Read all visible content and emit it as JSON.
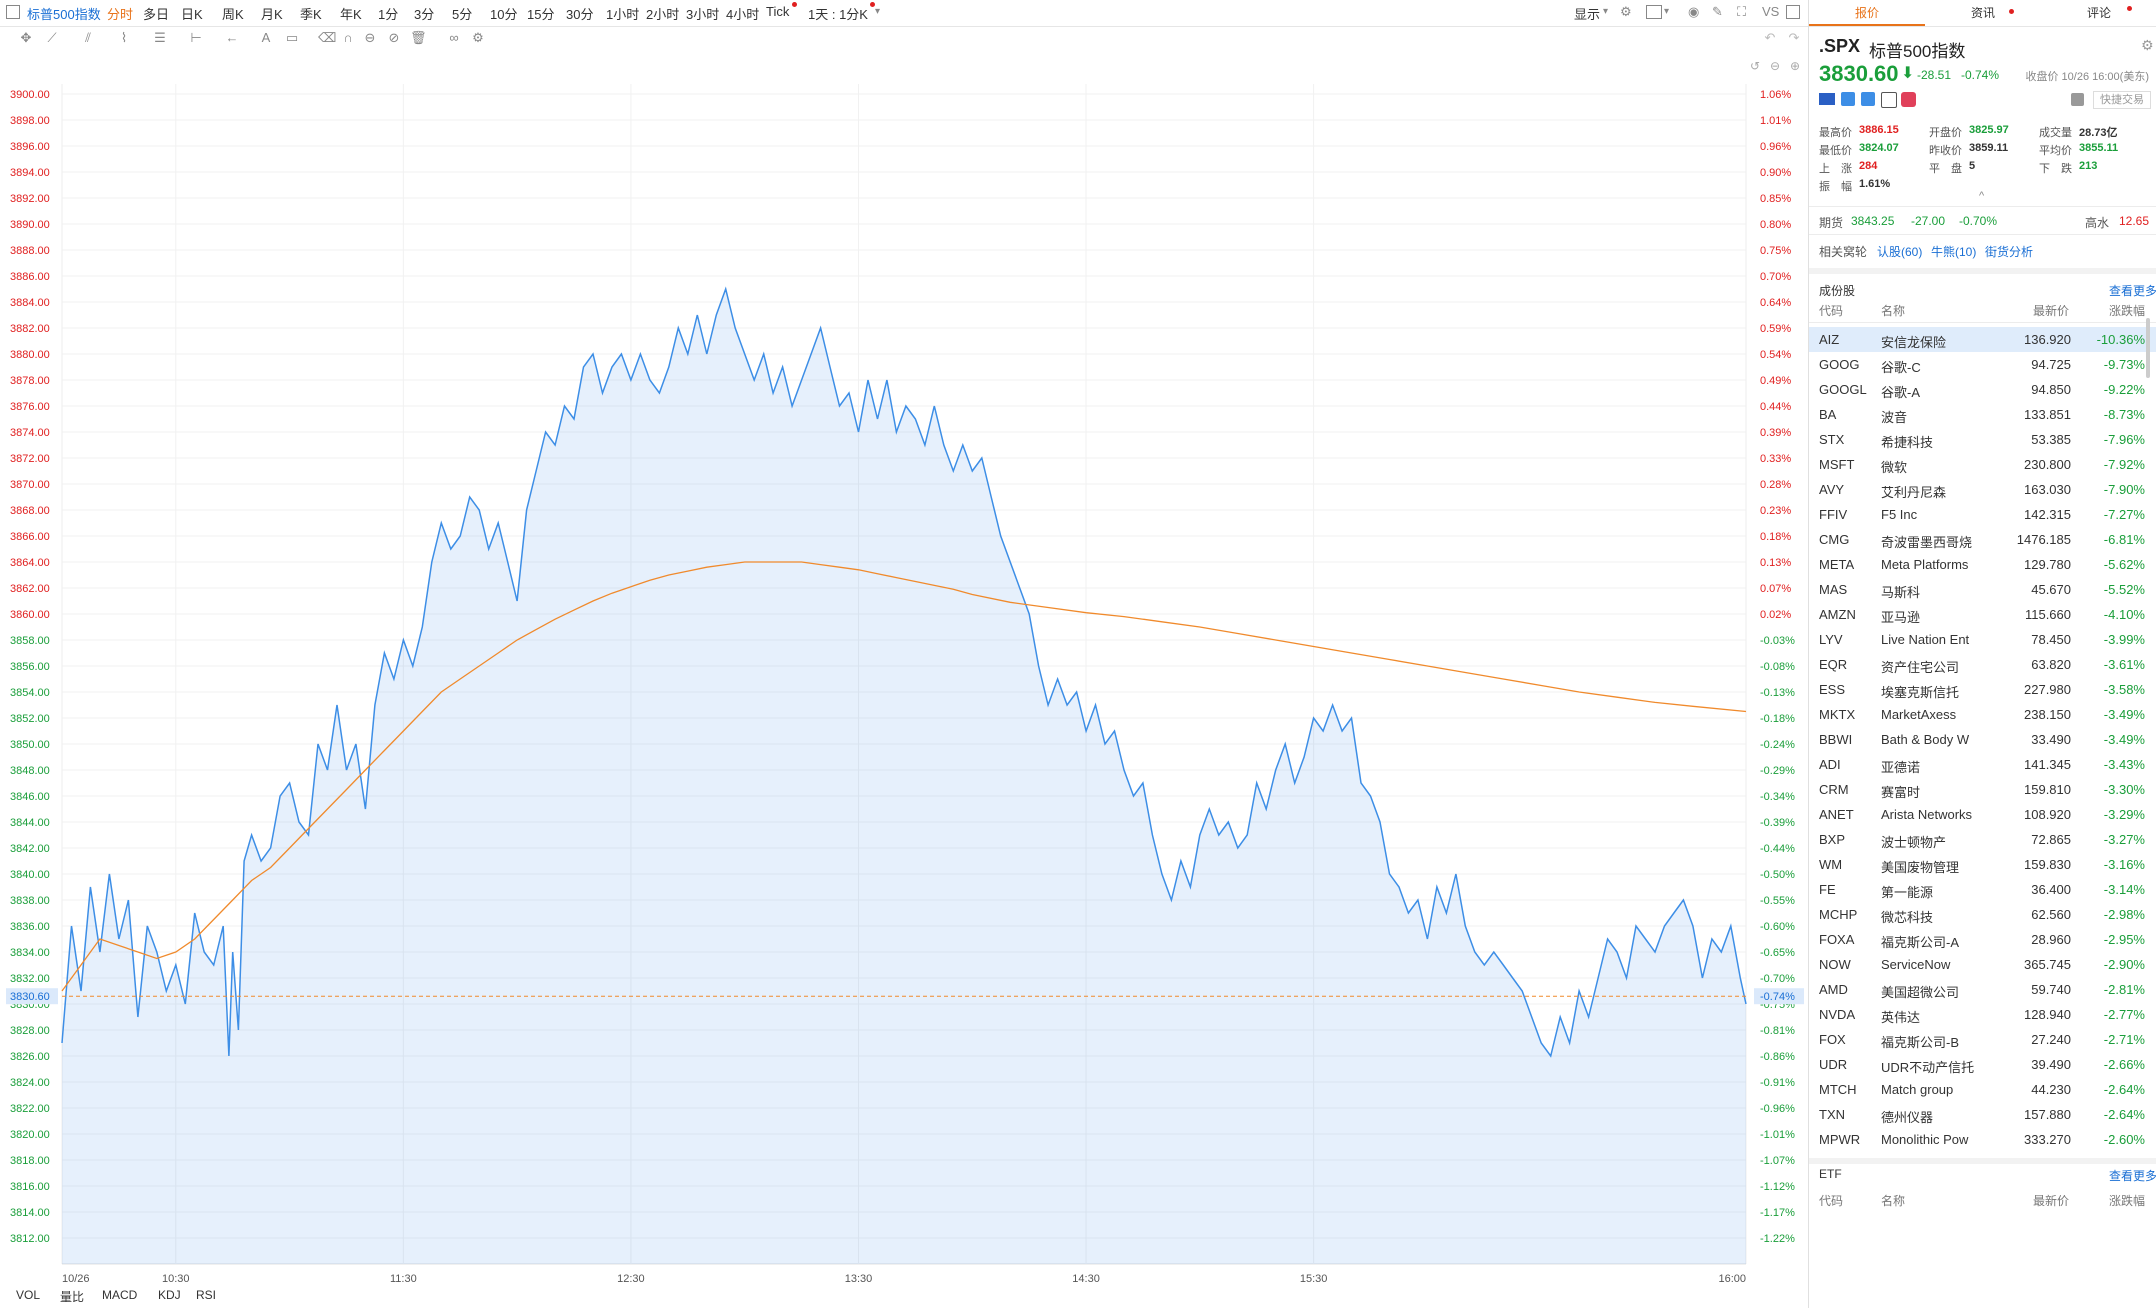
{
  "topbar": {
    "symbol_tab": "标普500指数",
    "timeframes": [
      "分时",
      "多日",
      "日K",
      "周K",
      "月K",
      "季K",
      "年K",
      "1分",
      "3分",
      "5分",
      "10分",
      "15分",
      "30分",
      "1小时",
      "2小时",
      "3小时",
      "4小时",
      "Tick"
    ],
    "active": "分时",
    "period_select": "1天 : 1分K",
    "display_label": "显示",
    "vs_label": "VS"
  },
  "chart_data": {
    "type": "area",
    "x_labels": [
      "10/26",
      "10:30",
      "11:30",
      "12:30",
      "13:30",
      "14:30",
      "15:30",
      "16:00"
    ],
    "y_left_ticks": [
      "3900.00",
      "3898.00",
      "3896.00",
      "3894.00",
      "3892.00",
      "3890.00",
      "3888.00",
      "3886.00",
      "3884.00",
      "3882.00",
      "3880.00",
      "3878.00",
      "3876.00",
      "3874.00",
      "3872.00",
      "3870.00",
      "3868.00",
      "3866.00",
      "3864.00",
      "3862.00",
      "3860.00",
      "3858.00",
      "3856.00",
      "3854.00",
      "3852.00",
      "3850.00",
      "3848.00",
      "3846.00",
      "3844.00",
      "3842.00",
      "3840.00",
      "3838.00",
      "3836.00",
      "3834.00",
      "3832.00",
      "3830.00",
      "3828.00",
      "3826.00",
      "3824.00",
      "3822.00",
      "3820.00",
      "3818.00",
      "3816.00",
      "3814.00",
      "3812.00"
    ],
    "y_right_ticks": [
      "1.06%",
      "1.01%",
      "0.96%",
      "0.90%",
      "0.85%",
      "0.80%",
      "0.75%",
      "0.70%",
      "0.64%",
      "0.59%",
      "0.54%",
      "0.49%",
      "0.44%",
      "0.39%",
      "0.33%",
      "0.28%",
      "0.23%",
      "0.18%",
      "0.13%",
      "0.07%",
      "0.02%",
      "-0.03%",
      "-0.08%",
      "-0.13%",
      "-0.18%",
      "-0.24%",
      "-0.29%",
      "-0.34%",
      "-0.39%",
      "-0.44%",
      "-0.50%",
      "-0.55%",
      "-0.60%",
      "-0.65%",
      "-0.70%",
      "-0.75%",
      "-0.81%",
      "-0.86%",
      "-0.91%",
      "-0.96%",
      "-1.01%",
      "-1.07%",
      "-1.12%",
      "-1.17%",
      "-1.22%"
    ],
    "ylim": [
      3811,
      3901
    ],
    "prev_close": 3859.11,
    "current_label_left": "3830.60",
    "current_label_right": "-0.74%",
    "price": [
      [
        0,
        3827
      ],
      [
        5,
        3836
      ],
      [
        10,
        3831
      ],
      [
        15,
        3839
      ],
      [
        20,
        3834
      ],
      [
        25,
        3840
      ],
      [
        30,
        3835
      ],
      [
        35,
        3838
      ],
      [
        40,
        3829
      ],
      [
        45,
        3836
      ],
      [
        50,
        3834
      ],
      [
        55,
        3831
      ],
      [
        60,
        3833
      ],
      [
        65,
        3830
      ],
      [
        70,
        3837
      ],
      [
        75,
        3834
      ],
      [
        80,
        3833
      ],
      [
        85,
        3836
      ],
      [
        88,
        3826
      ],
      [
        90,
        3834
      ],
      [
        93,
        3828
      ],
      [
        96,
        3841
      ],
      [
        100,
        3843
      ],
      [
        105,
        3841
      ],
      [
        110,
        3842
      ],
      [
        115,
        3846
      ],
      [
        120,
        3847
      ],
      [
        125,
        3844
      ],
      [
        130,
        3843
      ],
      [
        135,
        3850
      ],
      [
        140,
        3848
      ],
      [
        145,
        3853
      ],
      [
        150,
        3848
      ],
      [
        155,
        3850
      ],
      [
        160,
        3845
      ],
      [
        165,
        3853
      ],
      [
        170,
        3857
      ],
      [
        175,
        3855
      ],
      [
        180,
        3858
      ],
      [
        185,
        3856
      ],
      [
        190,
        3859
      ],
      [
        195,
        3864
      ],
      [
        200,
        3867
      ],
      [
        205,
        3865
      ],
      [
        210,
        3866
      ],
      [
        215,
        3869
      ],
      [
        220,
        3868
      ],
      [
        225,
        3865
      ],
      [
        230,
        3867
      ],
      [
        235,
        3864
      ],
      [
        240,
        3861
      ],
      [
        245,
        3868
      ],
      [
        250,
        3871
      ],
      [
        255,
        3874
      ],
      [
        260,
        3873
      ],
      [
        265,
        3876
      ],
      [
        270,
        3875
      ],
      [
        275,
        3879
      ],
      [
        280,
        3880
      ],
      [
        285,
        3877
      ],
      [
        290,
        3879
      ],
      [
        295,
        3880
      ],
      [
        300,
        3878
      ],
      [
        305,
        3880
      ],
      [
        310,
        3878
      ],
      [
        315,
        3877
      ],
      [
        320,
        3879
      ],
      [
        325,
        3882
      ],
      [
        330,
        3880
      ],
      [
        335,
        3883
      ],
      [
        340,
        3880
      ],
      [
        345,
        3883
      ],
      [
        350,
        3885
      ],
      [
        355,
        3882
      ],
      [
        360,
        3880
      ],
      [
        365,
        3878
      ],
      [
        370,
        3880
      ],
      [
        375,
        3877
      ],
      [
        380,
        3879
      ],
      [
        385,
        3876
      ],
      [
        390,
        3878
      ],
      [
        395,
        3880
      ],
      [
        400,
        3882
      ],
      [
        405,
        3879
      ],
      [
        410,
        3876
      ],
      [
        415,
        3877
      ],
      [
        420,
        3874
      ],
      [
        425,
        3878
      ],
      [
        430,
        3875
      ],
      [
        435,
        3878
      ],
      [
        440,
        3874
      ],
      [
        445,
        3876
      ],
      [
        450,
        3875
      ],
      [
        455,
        3873
      ],
      [
        460,
        3876
      ],
      [
        465,
        3873
      ],
      [
        470,
        3871
      ],
      [
        475,
        3873
      ],
      [
        480,
        3871
      ],
      [
        485,
        3872
      ],
      [
        490,
        3869
      ],
      [
        495,
        3866
      ],
      [
        500,
        3864
      ],
      [
        505,
        3862
      ],
      [
        510,
        3860
      ],
      [
        515,
        3856
      ],
      [
        520,
        3853
      ],
      [
        525,
        3855
      ],
      [
        530,
        3853
      ],
      [
        535,
        3854
      ],
      [
        540,
        3851
      ],
      [
        545,
        3853
      ],
      [
        550,
        3850
      ],
      [
        555,
        3851
      ],
      [
        560,
        3848
      ],
      [
        565,
        3846
      ],
      [
        570,
        3847
      ],
      [
        575,
        3843
      ],
      [
        580,
        3840
      ],
      [
        585,
        3838
      ],
      [
        590,
        3841
      ],
      [
        595,
        3839
      ],
      [
        600,
        3843
      ],
      [
        605,
        3845
      ],
      [
        610,
        3843
      ],
      [
        615,
        3844
      ],
      [
        620,
        3842
      ],
      [
        625,
        3843
      ],
      [
        630,
        3847
      ],
      [
        635,
        3845
      ],
      [
        640,
        3848
      ],
      [
        645,
        3850
      ],
      [
        650,
        3847
      ],
      [
        655,
        3849
      ],
      [
        660,
        3852
      ],
      [
        665,
        3851
      ],
      [
        670,
        3853
      ],
      [
        675,
        3851
      ],
      [
        680,
        3852
      ],
      [
        685,
        3847
      ],
      [
        690,
        3846
      ],
      [
        695,
        3844
      ],
      [
        700,
        3840
      ],
      [
        705,
        3839
      ],
      [
        710,
        3837
      ],
      [
        715,
        3838
      ],
      [
        720,
        3835
      ],
      [
        725,
        3839
      ],
      [
        730,
        3837
      ],
      [
        735,
        3840
      ],
      [
        740,
        3836
      ],
      [
        745,
        3834
      ],
      [
        750,
        3833
      ],
      [
        755,
        3834
      ],
      [
        760,
        3833
      ],
      [
        765,
        3832
      ],
      [
        770,
        3831
      ],
      [
        775,
        3829
      ],
      [
        780,
        3827
      ],
      [
        785,
        3826
      ],
      [
        790,
        3829
      ],
      [
        795,
        3827
      ],
      [
        800,
        3831
      ],
      [
        805,
        3829
      ],
      [
        810,
        3832
      ],
      [
        815,
        3835
      ],
      [
        820,
        3834
      ],
      [
        825,
        3832
      ],
      [
        830,
        3836
      ],
      [
        835,
        3835
      ],
      [
        840,
        3834
      ],
      [
        845,
        3836
      ],
      [
        850,
        3837
      ],
      [
        855,
        3838
      ],
      [
        860,
        3836
      ],
      [
        865,
        3832
      ],
      [
        870,
        3835
      ],
      [
        875,
        3834
      ],
      [
        880,
        3836
      ],
      [
        885,
        3832
      ],
      [
        888,
        3830
      ]
    ],
    "average": [
      [
        0,
        3831
      ],
      [
        10,
        3833
      ],
      [
        20,
        3835
      ],
      [
        30,
        3834.5
      ],
      [
        40,
        3834
      ],
      [
        50,
        3833.5
      ],
      [
        60,
        3834
      ],
      [
        70,
        3835
      ],
      [
        80,
        3836.5
      ],
      [
        90,
        3838
      ],
      [
        100,
        3839.5
      ],
      [
        110,
        3840.5
      ],
      [
        120,
        3842
      ],
      [
        130,
        3843.5
      ],
      [
        140,
        3845
      ],
      [
        150,
        3846.5
      ],
      [
        160,
        3848
      ],
      [
        170,
        3849.5
      ],
      [
        180,
        3851
      ],
      [
        190,
        3852.5
      ],
      [
        200,
        3854
      ],
      [
        210,
        3855
      ],
      [
        220,
        3856
      ],
      [
        230,
        3857
      ],
      [
        240,
        3858
      ],
      [
        250,
        3858.8
      ],
      [
        260,
        3859.6
      ],
      [
        270,
        3860.3
      ],
      [
        280,
        3861
      ],
      [
        290,
        3861.6
      ],
      [
        300,
        3862.1
      ],
      [
        310,
        3862.6
      ],
      [
        320,
        3863
      ],
      [
        330,
        3863.3
      ],
      [
        340,
        3863.6
      ],
      [
        350,
        3863.8
      ],
      [
        360,
        3864
      ],
      [
        370,
        3864
      ],
      [
        380,
        3864
      ],
      [
        390,
        3864
      ],
      [
        400,
        3863.8
      ],
      [
        410,
        3863.6
      ],
      [
        420,
        3863.4
      ],
      [
        430,
        3863.1
      ],
      [
        440,
        3862.8
      ],
      [
        450,
        3862.5
      ],
      [
        460,
        3862.2
      ],
      [
        470,
        3861.9
      ],
      [
        480,
        3861.5
      ],
      [
        500,
        3860.9
      ],
      [
        520,
        3860.5
      ],
      [
        540,
        3860.1
      ],
      [
        560,
        3859.8
      ],
      [
        580,
        3859.4
      ],
      [
        600,
        3859
      ],
      [
        620,
        3858.5
      ],
      [
        640,
        3858
      ],
      [
        660,
        3857.5
      ],
      [
        680,
        3857
      ],
      [
        700,
        3856.5
      ],
      [
        720,
        3856
      ],
      [
        740,
        3855.5
      ],
      [
        760,
        3855
      ],
      [
        780,
        3854.5
      ],
      [
        800,
        3854
      ],
      [
        820,
        3853.6
      ],
      [
        840,
        3853.2
      ],
      [
        860,
        3852.9
      ],
      [
        888,
        3852.5
      ]
    ]
  },
  "bottom_tabs": [
    "VOL",
    "量比",
    "MACD",
    "KDJ",
    "RSI"
  ],
  "panel": {
    "tabs": [
      "报价",
      "资讯",
      "评论"
    ],
    "ticker": ".SPX",
    "name": "标普500指数",
    "price": "3830.60",
    "arrow": "⬇",
    "change": "-28.51",
    "change_pct": "-0.74%",
    "close_time": "收盘价 10/26 16:00(美东)",
    "quick_trade": "快捷交易",
    "stats": [
      {
        "label": "最高价",
        "value": "3886.15",
        "cls": "up"
      },
      {
        "label": "开盘价",
        "value": "3825.97",
        "cls": "dn"
      },
      {
        "label": "成交量",
        "value": "28.73亿",
        "cls": ""
      },
      {
        "label": "最低价",
        "value": "3824.07",
        "cls": "dn"
      },
      {
        "label": "昨收价",
        "value": "3859.11",
        "cls": ""
      },
      {
        "label": "平均价",
        "value": "3855.11",
        "cls": "dn"
      },
      {
        "label": "上　涨",
        "value": "284",
        "cls": "up"
      },
      {
        "label": "平　盘",
        "value": "5",
        "cls": ""
      },
      {
        "label": "下　跌",
        "value": "213",
        "cls": "dn"
      },
      {
        "label": "振　幅",
        "value": "1.61%",
        "cls": ""
      }
    ],
    "futures_label": "期货",
    "futures_price": "3843.25",
    "futures_change": "-27.00",
    "futures_pct": "-0.70%",
    "gaoshui_label": "高水",
    "gaoshui_value": "12.65",
    "related_label": "相关窝轮",
    "related_links": [
      "认股(60)",
      "牛熊(10)",
      "街货分析"
    ],
    "constituents_title": "成份股",
    "more": "查看更多",
    "headers": [
      "代码",
      "名称",
      "最新价",
      "涨跌幅"
    ],
    "rows": [
      [
        "AIZ",
        "安信龙保险",
        "136.920",
        "-10.36%"
      ],
      [
        "GOOG",
        "谷歌-C",
        "94.725",
        "-9.73%"
      ],
      [
        "GOOGL",
        "谷歌-A",
        "94.850",
        "-9.22%"
      ],
      [
        "BA",
        "波音",
        "133.851",
        "-8.73%"
      ],
      [
        "STX",
        "希捷科技",
        "53.385",
        "-7.96%"
      ],
      [
        "MSFT",
        "微软",
        "230.800",
        "-7.92%"
      ],
      [
        "AVY",
        "艾利丹尼森",
        "163.030",
        "-7.90%"
      ],
      [
        "FFIV",
        "F5 Inc",
        "142.315",
        "-7.27%"
      ],
      [
        "CMG",
        "奇波雷墨西哥烧",
        "1476.185",
        "-6.81%"
      ],
      [
        "META",
        "Meta Platforms",
        "129.780",
        "-5.62%"
      ],
      [
        "MAS",
        "马斯科",
        "45.670",
        "-5.52%"
      ],
      [
        "AMZN",
        "亚马逊",
        "115.660",
        "-4.10%"
      ],
      [
        "LYV",
        "Live Nation Ent",
        "78.450",
        "-3.99%"
      ],
      [
        "EQR",
        "资产住宅公司",
        "63.820",
        "-3.61%"
      ],
      [
        "ESS",
        "埃塞克斯信托",
        "227.980",
        "-3.58%"
      ],
      [
        "MKTX",
        "MarketAxess",
        "238.150",
        "-3.49%"
      ],
      [
        "BBWI",
        "Bath & Body W",
        "33.490",
        "-3.49%"
      ],
      [
        "ADI",
        "亚德诺",
        "141.345",
        "-3.43%"
      ],
      [
        "CRM",
        "赛富时",
        "159.810",
        "-3.30%"
      ],
      [
        "ANET",
        "Arista Networks",
        "108.920",
        "-3.29%"
      ],
      [
        "BXP",
        "波士顿物产",
        "72.865",
        "-3.27%"
      ],
      [
        "WM",
        "美国废物管理",
        "159.830",
        "-3.16%"
      ],
      [
        "FE",
        "第一能源",
        "36.400",
        "-3.14%"
      ],
      [
        "MCHP",
        "微芯科技",
        "62.560",
        "-2.98%"
      ],
      [
        "FOXA",
        "福克斯公司-A",
        "28.960",
        "-2.95%"
      ],
      [
        "NOW",
        "ServiceNow",
        "365.745",
        "-2.90%"
      ],
      [
        "AMD",
        "美国超微公司",
        "59.740",
        "-2.81%"
      ],
      [
        "NVDA",
        "英伟达",
        "128.940",
        "-2.77%"
      ],
      [
        "FOX",
        "福克斯公司-B",
        "27.240",
        "-2.71%"
      ],
      [
        "UDR",
        "UDR不动产信托",
        "39.490",
        "-2.66%"
      ],
      [
        "MTCH",
        "Match group",
        "44.230",
        "-2.64%"
      ],
      [
        "TXN",
        "德州仪器",
        "157.880",
        "-2.64%"
      ],
      [
        "MPWR",
        "Monolithic Pow",
        "333.270",
        "-2.60%"
      ]
    ],
    "etf_title": "ETF",
    "etf_more": "查看更多",
    "etf_headers": [
      "代码",
      "名称",
      "最新价",
      "涨跌幅"
    ]
  },
  "colors": {
    "up": "#e02020",
    "down": "#1a9e3a",
    "line": "#3d8ee6",
    "avg": "#f08a2c",
    "accent": "#e8731a"
  }
}
